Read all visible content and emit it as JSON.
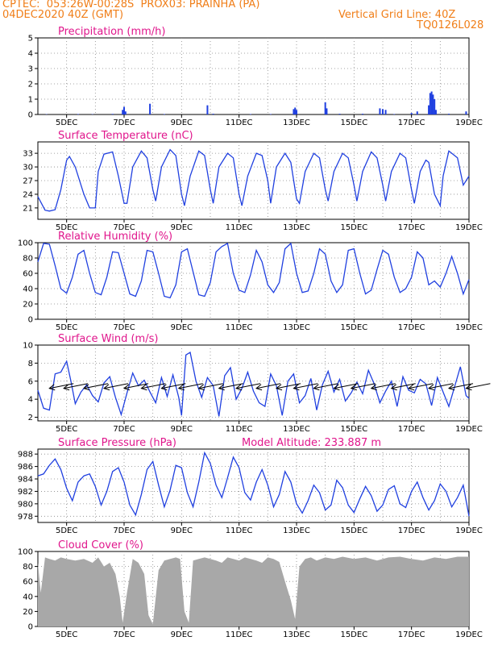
{
  "header": {
    "line1_left": "CPTEC:  053:26W-00:28S  PROX03: PRAINHA (PA)",
    "line2_left": "04DEC2020 40Z (GMT)",
    "line2_right": "Vertical Grid Line: 40Z",
    "line3_right": "TQ0126L028"
  },
  "colors": {
    "line": "#2040e0",
    "title": "#e0168c",
    "header": "#f07e18",
    "cloud": "#a8a8a8"
  },
  "chart_data": [
    {
      "type": "bar",
      "title": "Precipitation (mm/h)",
      "xrange": [
        4,
        19
      ],
      "ylim": [
        0,
        5
      ],
      "yticks": [
        0,
        1,
        2,
        3,
        4,
        5
      ],
      "xtick_labels": [
        "5DEC",
        "7DEC",
        "9DEC",
        "11DEC",
        "13DEC",
        "15DEC",
        "17DEC",
        "19DEC"
      ],
      "grid": true,
      "x": [
        4.3,
        5.4,
        5.9,
        6.6,
        6.95,
        7.0,
        7.05,
        7.9,
        8.4,
        9.9,
        10.1,
        11.4,
        12.1,
        12.9,
        12.95,
        13.0,
        14.0,
        14.05,
        14.5,
        15.3,
        15.9,
        16.0,
        16.1,
        16.4,
        17.0,
        17.2,
        17.6,
        17.65,
        17.7,
        17.75,
        17.8,
        17.85,
        18.3,
        18.9
      ],
      "values": [
        0.02,
        0.03,
        0.02,
        0.04,
        0.3,
        0.5,
        0.2,
        0.7,
        0.03,
        0.6,
        0.05,
        0.03,
        0.03,
        0.35,
        0.45,
        0.3,
        0.8,
        0.4,
        0.05,
        0.05,
        0.4,
        0.35,
        0.3,
        0.03,
        0.1,
        0.2,
        0.6,
        1.4,
        1.5,
        1.3,
        1.0,
        0.3,
        0.05,
        0.2
      ]
    },
    {
      "type": "line",
      "title": "Surface Temperature (nC)",
      "xrange": [
        4,
        19
      ],
      "ylim": [
        18.5,
        35.5
      ],
      "yticks": [
        21,
        24,
        27,
        30,
        33
      ],
      "xtick_labels": [
        "5DEC",
        "7DEC",
        "9DEC",
        "11DEC",
        "13DEC",
        "15DEC",
        "17DEC",
        "19DEC"
      ],
      "grid": true,
      "x": [
        4.0,
        4.25,
        4.4,
        4.6,
        4.8,
        5.0,
        5.1,
        5.3,
        5.6,
        5.8,
        6.0,
        6.1,
        6.3,
        6.6,
        6.8,
        7.0,
        7.1,
        7.3,
        7.6,
        7.8,
        8.0,
        8.1,
        8.3,
        8.6,
        8.8,
        9.0,
        9.1,
        9.3,
        9.6,
        9.8,
        10.0,
        10.1,
        10.3,
        10.6,
        10.8,
        11.0,
        11.1,
        11.3,
        11.6,
        11.8,
        12.0,
        12.1,
        12.3,
        12.6,
        12.8,
        13.0,
        13.1,
        13.3,
        13.6,
        13.8,
        14.0,
        14.1,
        14.3,
        14.6,
        14.8,
        15.0,
        15.1,
        15.3,
        15.6,
        15.8,
        16.0,
        16.1,
        16.3,
        16.6,
        16.8,
        17.0,
        17.1,
        17.3,
        17.5,
        17.6,
        17.8,
        18.0,
        18.1,
        18.3,
        18.6,
        18.8,
        19.0
      ],
      "y": [
        23.5,
        20.5,
        20.3,
        20.6,
        25,
        31.5,
        32.3,
        30,
        24,
        21,
        21,
        29,
        32.8,
        33.3,
        28,
        22,
        22,
        30,
        33.5,
        32,
        25,
        22.5,
        30,
        33.8,
        32.5,
        24,
        21.5,
        28,
        33.5,
        32.5,
        25,
        22,
        30,
        33,
        32,
        24,
        21.5,
        28,
        33,
        32.5,
        27,
        22,
        30,
        33,
        31,
        23,
        22,
        29,
        33,
        32,
        25,
        22.5,
        29,
        33,
        32,
        26,
        22.5,
        29,
        33.3,
        32,
        26,
        22.5,
        29,
        33,
        32,
        25,
        22,
        29,
        31.5,
        31,
        24,
        21.5,
        28,
        33.5,
        32,
        26,
        28
      ]
    },
    {
      "type": "line",
      "title": "Relative Humidity (%)",
      "xrange": [
        4,
        19
      ],
      "ylim": [
        0,
        100
      ],
      "yticks": [
        0,
        20,
        40,
        60,
        80,
        100
      ],
      "xtick_labels": [
        "5DEC",
        "7DEC",
        "9DEC",
        "11DEC",
        "13DEC",
        "15DEC",
        "17DEC",
        "19DEC"
      ],
      "grid": true,
      "x": [
        4.0,
        4.2,
        4.4,
        4.6,
        4.8,
        5.0,
        5.2,
        5.4,
        5.6,
        5.8,
        6.0,
        6.2,
        6.4,
        6.6,
        6.8,
        7.0,
        7.2,
        7.4,
        7.6,
        7.8,
        8.0,
        8.2,
        8.4,
        8.6,
        8.8,
        9.0,
        9.2,
        9.4,
        9.6,
        9.8,
        10.0,
        10.2,
        10.4,
        10.6,
        10.8,
        11.0,
        11.2,
        11.4,
        11.6,
        11.8,
        12.0,
        12.2,
        12.4,
        12.6,
        12.8,
        13.0,
        13.2,
        13.4,
        13.6,
        13.8,
        14.0,
        14.2,
        14.4,
        14.6,
        14.8,
        15.0,
        15.2,
        15.4,
        15.6,
        15.8,
        16.0,
        16.2,
        16.4,
        16.6,
        16.8,
        17.0,
        17.2,
        17.4,
        17.6,
        17.8,
        18.0,
        18.2,
        18.4,
        18.6,
        18.8,
        19.0
      ],
      "y": [
        75,
        99,
        98,
        70,
        40,
        34,
        55,
        85,
        90,
        60,
        35,
        32,
        55,
        88,
        87,
        60,
        33,
        30,
        50,
        90,
        88,
        60,
        30,
        28,
        45,
        88,
        92,
        62,
        32,
        30,
        48,
        88,
        95,
        99,
        60,
        38,
        35,
        58,
        90,
        75,
        45,
        35,
        48,
        92,
        99,
        60,
        35,
        37,
        60,
        92,
        85,
        50,
        35,
        45,
        90,
        92,
        60,
        33,
        38,
        65,
        90,
        85,
        55,
        35,
        40,
        55,
        88,
        80,
        45,
        50,
        42,
        60,
        82,
        60,
        33,
        52
      ]
    },
    {
      "type": "line",
      "title": "Surface Wind (m/s)",
      "xrange": [
        4,
        19
      ],
      "ylim": [
        1.6,
        10
      ],
      "yticks": [
        2,
        4,
        6,
        8,
        10
      ],
      "xtick_labels": [
        "5DEC",
        "7DEC",
        "9DEC",
        "11DEC",
        "13DEC",
        "15DEC",
        "17DEC",
        "19DEC"
      ],
      "grid": true,
      "barb_x": [
        4.4,
        4.9,
        5.6,
        6.3,
        7.0,
        7.6,
        8.3,
        8.9,
        9.6,
        10.3,
        10.9,
        11.6,
        12.3,
        12.9,
        13.6,
        14.3,
        14.9,
        15.6,
        16.3,
        16.9,
        17.6,
        18.3,
        18.9
      ],
      "x": [
        4.0,
        4.2,
        4.4,
        4.6,
        4.8,
        5.0,
        5.15,
        5.3,
        5.5,
        5.7,
        5.9,
        6.1,
        6.3,
        6.5,
        6.7,
        6.9,
        7.1,
        7.3,
        7.5,
        7.7,
        7.9,
        8.1,
        8.3,
        8.5,
        8.7,
        8.9,
        9.0,
        9.15,
        9.3,
        9.5,
        9.7,
        9.9,
        10.1,
        10.3,
        10.5,
        10.7,
        10.9,
        11.1,
        11.3,
        11.5,
        11.7,
        11.9,
        12.1,
        12.3,
        12.5,
        12.7,
        12.9,
        13.1,
        13.3,
        13.5,
        13.7,
        13.9,
        14.1,
        14.3,
        14.5,
        14.7,
        14.9,
        15.1,
        15.3,
        15.5,
        15.7,
        15.9,
        16.1,
        16.3,
        16.5,
        16.7,
        16.9,
        17.1,
        17.3,
        17.5,
        17.7,
        17.9,
        18.1,
        18.3,
        18.5,
        18.7,
        18.9,
        19.0
      ],
      "y": [
        5.0,
        3.0,
        2.8,
        6.8,
        7.0,
        8.2,
        6.0,
        3.5,
        4.8,
        5.6,
        4.4,
        3.7,
        5.8,
        6.5,
        4.2,
        2.3,
        4.7,
        6.9,
        5.5,
        6.1,
        4.8,
        3.6,
        6.4,
        4.3,
        6.7,
        4.2,
        2.2,
        8.9,
        9.2,
        6.0,
        4.2,
        6.4,
        5.5,
        2.1,
        6.6,
        7.5,
        4.0,
        5.2,
        7.0,
        4.9,
        3.6,
        3.2,
        6.8,
        5.5,
        2.2,
        6.0,
        6.8,
        3.6,
        4.4,
        6.3,
        2.8,
        5.6,
        7.1,
        4.8,
        6.2,
        3.8,
        4.7,
        5.9,
        4.6,
        7.2,
        5.7,
        3.6,
        4.9,
        6.0,
        3.2,
        6.5,
        5.0,
        4.7,
        6.2,
        5.7,
        3.3,
        6.4,
        4.8,
        3.2,
        5.4,
        7.6,
        4.4,
        4.1
      ]
    },
    {
      "type": "line",
      "title": "Surface Pressure (hPa)",
      "annotation": "Model Altitude: 233.887 m",
      "xrange": [
        4,
        19
      ],
      "ylim": [
        977,
        988.8
      ],
      "yticks": [
        978,
        980,
        982,
        984,
        986,
        988
      ],
      "xtick_labels": [
        "5DEC",
        "7DEC",
        "9DEC",
        "11DEC",
        "13DEC",
        "15DEC",
        "17DEC",
        "19DEC"
      ],
      "grid": true,
      "x": [
        4.0,
        4.2,
        4.4,
        4.6,
        4.8,
        5.0,
        5.2,
        5.4,
        5.6,
        5.8,
        6.0,
        6.2,
        6.4,
        6.6,
        6.8,
        7.0,
        7.2,
        7.4,
        7.6,
        7.8,
        8.0,
        8.2,
        8.4,
        8.6,
        8.8,
        9.0,
        9.2,
        9.4,
        9.6,
        9.8,
        10.0,
        10.2,
        10.4,
        10.6,
        10.8,
        11.0,
        11.2,
        11.4,
        11.6,
        11.8,
        12.0,
        12.2,
        12.4,
        12.6,
        12.8,
        13.0,
        13.2,
        13.4,
        13.6,
        13.8,
        14.0,
        14.2,
        14.4,
        14.6,
        14.8,
        15.0,
        15.2,
        15.4,
        15.6,
        15.8,
        16.0,
        16.2,
        16.4,
        16.6,
        16.8,
        17.0,
        17.2,
        17.4,
        17.6,
        17.8,
        18.0,
        18.2,
        18.4,
        18.6,
        18.8,
        19.0
      ],
      "y": [
        984.5,
        984.8,
        986.2,
        987.2,
        985.5,
        982.5,
        980.5,
        983.5,
        984.5,
        984.8,
        982.8,
        979.8,
        982.0,
        985.2,
        985.8,
        983.5,
        979.8,
        978.2,
        981.5,
        985.5,
        986.8,
        983.0,
        979.5,
        982.2,
        986.2,
        985.8,
        981.8,
        979.5,
        983.5,
        988.2,
        986.5,
        983.0,
        981.0,
        984.2,
        987.5,
        985.8,
        981.8,
        980.6,
        983.5,
        985.5,
        983.0,
        979.5,
        981.5,
        985.2,
        983.5,
        980.0,
        978.5,
        980.5,
        983.0,
        981.8,
        979.0,
        979.8,
        983.8,
        982.6,
        979.8,
        978.6,
        980.8,
        982.8,
        981.3,
        978.8,
        979.8,
        982.3,
        982.9,
        980.0,
        979.4,
        982.0,
        983.5,
        981.0,
        979.0,
        980.5,
        983.2,
        982.0,
        979.5,
        981.0,
        983.0,
        978.0
      ]
    },
    {
      "type": "area",
      "title": "Cloud Cover (%)",
      "xrange": [
        4,
        19
      ],
      "ylim": [
        0,
        100
      ],
      "yticks": [
        0,
        20,
        40,
        60,
        80,
        100
      ],
      "xtick_labels": [
        "5DEC",
        "7DEC",
        "9DEC",
        "11DEC",
        "13DEC",
        "15DEC",
        "17DEC",
        "19DEC"
      ],
      "grid": true,
      "x": [
        4.0,
        4.1,
        4.25,
        4.4,
        4.6,
        4.8,
        5.0,
        5.3,
        5.6,
        5.9,
        6.1,
        6.3,
        6.5,
        6.7,
        6.85,
        6.95,
        7.1,
        7.3,
        7.5,
        7.7,
        7.85,
        8.0,
        8.2,
        8.4,
        8.6,
        8.8,
        8.95,
        9.1,
        9.25,
        9.4,
        9.6,
        9.8,
        10.0,
        10.2,
        10.4,
        10.6,
        10.8,
        11.0,
        11.2,
        11.4,
        11.6,
        11.8,
        12.0,
        12.2,
        12.4,
        12.6,
        12.8,
        12.95,
        13.1,
        13.3,
        13.5,
        13.7,
        14.0,
        14.3,
        14.6,
        15.0,
        15.4,
        15.8,
        16.2,
        16.6,
        17.0,
        17.4,
        17.8,
        18.2,
        18.6,
        19.0
      ],
      "y": [
        85,
        45,
        92,
        90,
        88,
        92,
        90,
        88,
        90,
        85,
        92,
        80,
        85,
        70,
        40,
        5,
        45,
        90,
        85,
        70,
        15,
        3,
        75,
        88,
        90,
        92,
        90,
        20,
        5,
        88,
        90,
        92,
        90,
        88,
        85,
        92,
        90,
        88,
        92,
        90,
        88,
        85,
        92,
        90,
        86,
        60,
        35,
        10,
        80,
        90,
        92,
        88,
        92,
        90,
        93,
        90,
        92,
        88,
        92,
        93,
        90,
        88,
        92,
        90,
        93,
        93
      ]
    }
  ]
}
